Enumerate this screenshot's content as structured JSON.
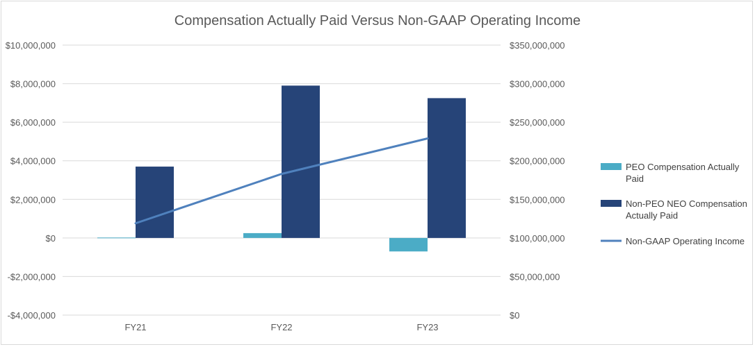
{
  "chart_data": {
    "type": "bar",
    "title": "Compensation Actually Paid Versus Non-GAAP Operating Income",
    "categories": [
      "FY21",
      "FY22",
      "FY23"
    ],
    "series": [
      {
        "name": "PEO Compensation Actually Paid",
        "axis": "left",
        "kind": "bar",
        "color": "#4bacc6",
        "values": [
          20000,
          250000,
          -700000
        ]
      },
      {
        "name": "Non-PEO NEO Compensation Actually Paid",
        "axis": "left",
        "kind": "bar",
        "color": "#264478",
        "values": [
          3700000,
          7900000,
          7250000
        ]
      },
      {
        "name": "Non-GAAP Operating Income",
        "axis": "right",
        "kind": "line",
        "color": "#4f81bd",
        "values": [
          119000000,
          183000000,
          229000000
        ]
      }
    ],
    "left_axis": {
      "ylim": [
        -4000000,
        10000000
      ],
      "ticks": [
        10000000,
        8000000,
        6000000,
        4000000,
        2000000,
        0,
        -2000000,
        -4000000
      ],
      "tick_labels": [
        "$10,000,000",
        "$8,000,000",
        "$6,000,000",
        "$4,000,000",
        "$2,000,000",
        "$0",
        "-$2,000,000",
        "-$4,000,000"
      ]
    },
    "right_axis": {
      "ylim": [
        0,
        350000000
      ],
      "ticks": [
        350000000,
        300000000,
        250000000,
        200000000,
        150000000,
        100000000,
        50000000,
        0
      ],
      "tick_labels": [
        "$350,000,000",
        "$300,000,000",
        "$250,000,000",
        "$200,000,000",
        "$150,000,000",
        "$100,000,000",
        "$50,000,000",
        "$0"
      ]
    },
    "legend": {
      "placement": "right",
      "entries": [
        {
          "lines": [
            "PEO Compensation Actually",
            "Paid"
          ]
        },
        {
          "lines": [
            "Non-PEO NEO Compensation",
            "Actually Paid"
          ]
        },
        {
          "lines": [
            "Non-GAAP Operating Income"
          ]
        }
      ]
    },
    "grid": true
  }
}
